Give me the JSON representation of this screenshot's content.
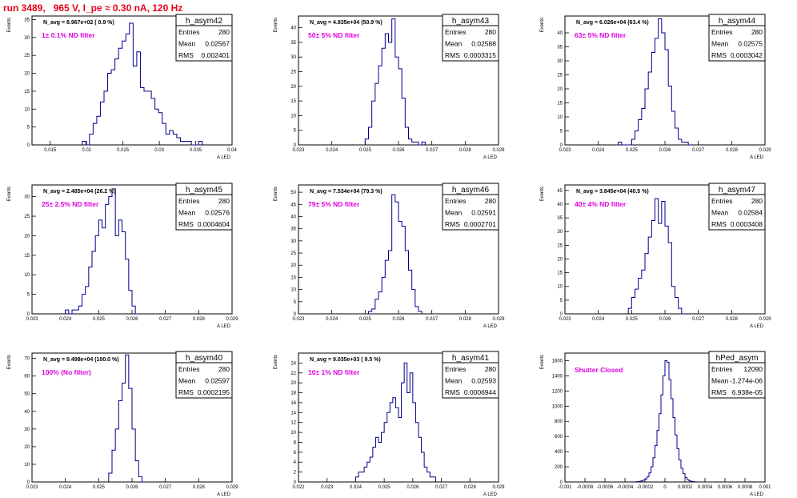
{
  "title": "run 3489,   965 V, I_pe ≈ 0.30 nA, 120 Hz",
  "colors": {
    "hist": "#00008b",
    "annotation": "#e000e0",
    "title": "#e8001a",
    "frame": "#000000"
  },
  "stats_labels": {
    "entries": "Entries",
    "mean": "Mean",
    "rms": "RMS"
  },
  "chart_data": [
    {
      "type": "bar",
      "name": "h_asym42",
      "navg": "N_avg = 8.967e+02 ( 0.9 %)",
      "annotation": "1± 0.1% ND filter",
      "ylabel": "Events",
      "xlabel": "A_LED",
      "entries": "280",
      "mean": "0.02567",
      "rms": "0.002401",
      "xlim": [
        0.0125,
        0.04
      ],
      "ylim": [
        0,
        36
      ],
      "xticks": [
        0.015,
        0.02,
        0.025,
        0.03,
        0.035,
        0.04
      ],
      "xticklabels": [
        "0.015",
        "0.02",
        "0.025",
        "0.03",
        "0.035",
        "0.04"
      ],
      "yticks": [
        0,
        5,
        10,
        15,
        20,
        25,
        30,
        35
      ],
      "x0": 0.0194,
      "binw": 0.0005,
      "counts": [
        1,
        0,
        3,
        6,
        8,
        12,
        15,
        20,
        21,
        24,
        27,
        29,
        31,
        34,
        22,
        26,
        16,
        15,
        15,
        13,
        10,
        9,
        6,
        3,
        4,
        3,
        2,
        1,
        1,
        1,
        0,
        0,
        1
      ]
    },
    {
      "type": "bar",
      "name": "h_asym43",
      "navg": "N_avg = 4.835e+04 (50.9 %)",
      "annotation": "50± 5% ND filter",
      "ylabel": "Events",
      "xlabel": "A_LED",
      "entries": "280",
      "mean": "0.02588",
      "rms": "0.0003315",
      "xlim": [
        0.023,
        0.029
      ],
      "ylim": [
        0,
        44
      ],
      "xticks": [
        0.023,
        0.024,
        0.025,
        0.026,
        0.027,
        0.028,
        0.029
      ],
      "xticklabels": [
        "0.023",
        "0.024",
        "0.025",
        "0.026",
        "0.027",
        "0.028",
        "0.029"
      ],
      "yticks": [
        0,
        5,
        10,
        15,
        20,
        25,
        30,
        35,
        40
      ],
      "x0": 0.025,
      "binw": 0.0001,
      "counts": [
        2,
        6,
        15,
        21,
        27,
        33,
        38,
        35,
        43,
        30,
        26,
        16,
        6,
        2,
        1,
        1,
        0,
        1
      ]
    },
    {
      "type": "bar",
      "name": "h_asym44",
      "navg": "N_avg = 6.026e+04 (63.4 %)",
      "annotation": "63± 5% ND filter",
      "ylabel": "Events",
      "xlabel": "A_LED",
      "entries": "280",
      "mean": "0.02575",
      "rms": "0.0003042",
      "xlim": [
        0.023,
        0.029
      ],
      "ylim": [
        0,
        46
      ],
      "xticks": [
        0.023,
        0.024,
        0.025,
        0.026,
        0.027,
        0.028,
        0.029
      ],
      "xticklabels": [
        "0.023",
        "0.024",
        "0.025",
        "0.026",
        "0.027",
        "0.028",
        "0.029"
      ],
      "yticks": [
        0,
        5,
        10,
        15,
        20,
        25,
        30,
        35,
        40
      ],
      "x0": 0.0246,
      "binw": 0.0001,
      "counts": [
        1,
        0,
        0,
        0,
        2,
        5,
        9,
        13,
        20,
        26,
        33,
        38,
        45,
        40,
        34,
        21,
        12,
        6,
        2,
        1,
        1,
        0
      ]
    },
    {
      "type": "bar",
      "name": "h_asym45",
      "navg": "N_avg = 2.485e+04 (26.2 %)",
      "annotation": "25± 2.5% ND filter",
      "ylabel": "Events",
      "xlabel": "A_LED",
      "entries": "280",
      "mean": "0.02576",
      "rms": "0.0004604",
      "xlim": [
        0.023,
        0.029
      ],
      "ylim": [
        0,
        33
      ],
      "xticks": [
        0.023,
        0.024,
        0.025,
        0.026,
        0.027,
        0.028,
        0.029
      ],
      "xticklabels": [
        "0.023",
        "0.024",
        "0.025",
        "0.026",
        "0.027",
        "0.028",
        "0.029"
      ],
      "yticks": [
        0,
        5,
        10,
        15,
        20,
        25,
        30
      ],
      "x0": 0.024,
      "binw": 0.0001,
      "counts": [
        1,
        0,
        1,
        1,
        2,
        5,
        7,
        12,
        16,
        20,
        24,
        22,
        28,
        30,
        32,
        20,
        24,
        21,
        14,
        6,
        2,
        0
      ]
    },
    {
      "type": "bar",
      "name": "h_asym46",
      "navg": "N_avg = 7.534e+04 (79.3 %)",
      "annotation": "79± 5% ND filter",
      "ylabel": "Events",
      "xlabel": "A_LED",
      "entries": "280",
      "mean": "0.02591",
      "rms": "0.0002701",
      "xlim": [
        0.023,
        0.029
      ],
      "ylim": [
        0,
        53
      ],
      "xticks": [
        0.023,
        0.024,
        0.025,
        0.026,
        0.027,
        0.028,
        0.029
      ],
      "xticklabels": [
        "0.023",
        "0.024",
        "0.025",
        "0.026",
        "0.027",
        "0.028",
        "0.029"
      ],
      "yticks": [
        0,
        5,
        10,
        15,
        20,
        25,
        30,
        35,
        40,
        45,
        50
      ],
      "x0": 0.0251,
      "binw": 0.0001,
      "counts": [
        1,
        2,
        6,
        9,
        15,
        22,
        26,
        49,
        46,
        38,
        36,
        26,
        18,
        10,
        3,
        1
      ]
    },
    {
      "type": "bar",
      "name": "h_asym47",
      "navg": "N_avg = 3.845e+04 (40.5 %)",
      "annotation": "40± 4% ND filter",
      "ylabel": "Events",
      "xlabel": "A_LED",
      "entries": "280",
      "mean": "0.02584",
      "rms": "0.0003408",
      "xlim": [
        0.023,
        0.029
      ],
      "ylim": [
        0,
        47
      ],
      "xticks": [
        0.023,
        0.024,
        0.025,
        0.026,
        0.027,
        0.028,
        0.029
      ],
      "xticklabels": [
        "0.023",
        "0.024",
        "0.025",
        "0.026",
        "0.027",
        "0.028",
        "0.029"
      ],
      "yticks": [
        0,
        5,
        10,
        15,
        20,
        25,
        30,
        35,
        40,
        45
      ],
      "x0": 0.0249,
      "binw": 0.0001,
      "counts": [
        2,
        6,
        9,
        13,
        16,
        22,
        28,
        34,
        42,
        33,
        41,
        32,
        26,
        10,
        6,
        2,
        0
      ]
    },
    {
      "type": "bar",
      "name": "h_asym40",
      "navg": "N_avg = 9.498e+04 (100.0 %)",
      "annotation": "100% (No filter)",
      "ylabel": "Events",
      "xlabel": "A_LED",
      "entries": "280",
      "mean": "0.02597",
      "rms": "0.0002195",
      "xlim": [
        0.023,
        0.029
      ],
      "ylim": [
        0,
        73
      ],
      "xticks": [
        0.023,
        0.024,
        0.025,
        0.026,
        0.027,
        0.028,
        0.029
      ],
      "xticklabels": [
        "0.023",
        "0.024",
        "0.025",
        "0.026",
        "0.027",
        "0.028",
        "0.029"
      ],
      "yticks": [
        0,
        10,
        20,
        30,
        40,
        50,
        60,
        70
      ],
      "x0": 0.0253,
      "binw": 0.0001,
      "counts": [
        5,
        18,
        30,
        46,
        56,
        72,
        53,
        30,
        12,
        3,
        0
      ]
    },
    {
      "type": "bar",
      "name": "h_asym41",
      "navg": "N_avg = 9.035e+03 ( 9.5 %)",
      "annotation": "10± 1% ND filter",
      "ylabel": "Events",
      "xlabel": "A_LED",
      "entries": "280",
      "mean": "0.02593",
      "rms": "0.0006944",
      "xlim": [
        0.022,
        0.029
      ],
      "ylim": [
        0,
        26
      ],
      "xticks": [
        0.022,
        0.023,
        0.024,
        0.025,
        0.026,
        0.027,
        0.028,
        0.029
      ],
      "xticklabels": [
        "0.022",
        "0.023",
        "0.024",
        "0.025",
        "0.026",
        "0.027",
        "0.028",
        "0.029"
      ],
      "yticks": [
        0,
        2,
        4,
        6,
        8,
        10,
        12,
        14,
        16,
        18,
        20,
        22,
        24
      ],
      "x0": 0.024,
      "binw": 0.0001,
      "counts": [
        1,
        2,
        2,
        3,
        4,
        5,
        7,
        9,
        8,
        10,
        12,
        14,
        16,
        17,
        15,
        13,
        20,
        24,
        18,
        22,
        16,
        12,
        9,
        6,
        3,
        2,
        1,
        1
      ]
    },
    {
      "type": "bar",
      "name": "hPed_asym",
      "navg": "",
      "annotation": "Shutter Closed",
      "ylabel": "Events",
      "xlabel": "A_LED",
      "entries": "12090",
      "mean": "-1.274e-06",
      "rms": "6.938e-05",
      "xlim": [
        -0.001,
        0.001
      ],
      "ylim": [
        0,
        1700
      ],
      "xticks": [
        -0.001,
        -0.0008,
        -0.0006,
        -0.0004,
        -0.0002,
        0,
        0.0002,
        0.0004,
        0.0006,
        0.0008,
        0.001
      ],
      "xticklabels": [
        "-0.001",
        "-0.0008",
        "-0.0006",
        "-0.0004",
        "-0.0002",
        "0",
        "0.0002",
        "0.0004",
        "0.0006",
        "0.0008",
        "0.001"
      ],
      "yticks": [
        0,
        200,
        400,
        600,
        800,
        1000,
        1200,
        1400,
        1600
      ],
      "x0": -0.0003,
      "binw": 2e-05,
      "counts": [
        2,
        4,
        8,
        14,
        25,
        40,
        70,
        120,
        200,
        320,
        480,
        680,
        900,
        1150,
        1400,
        1600,
        1580,
        1350,
        1100,
        850,
        620,
        440,
        290,
        180,
        110,
        60,
        30,
        15,
        8,
        4
      ]
    }
  ]
}
